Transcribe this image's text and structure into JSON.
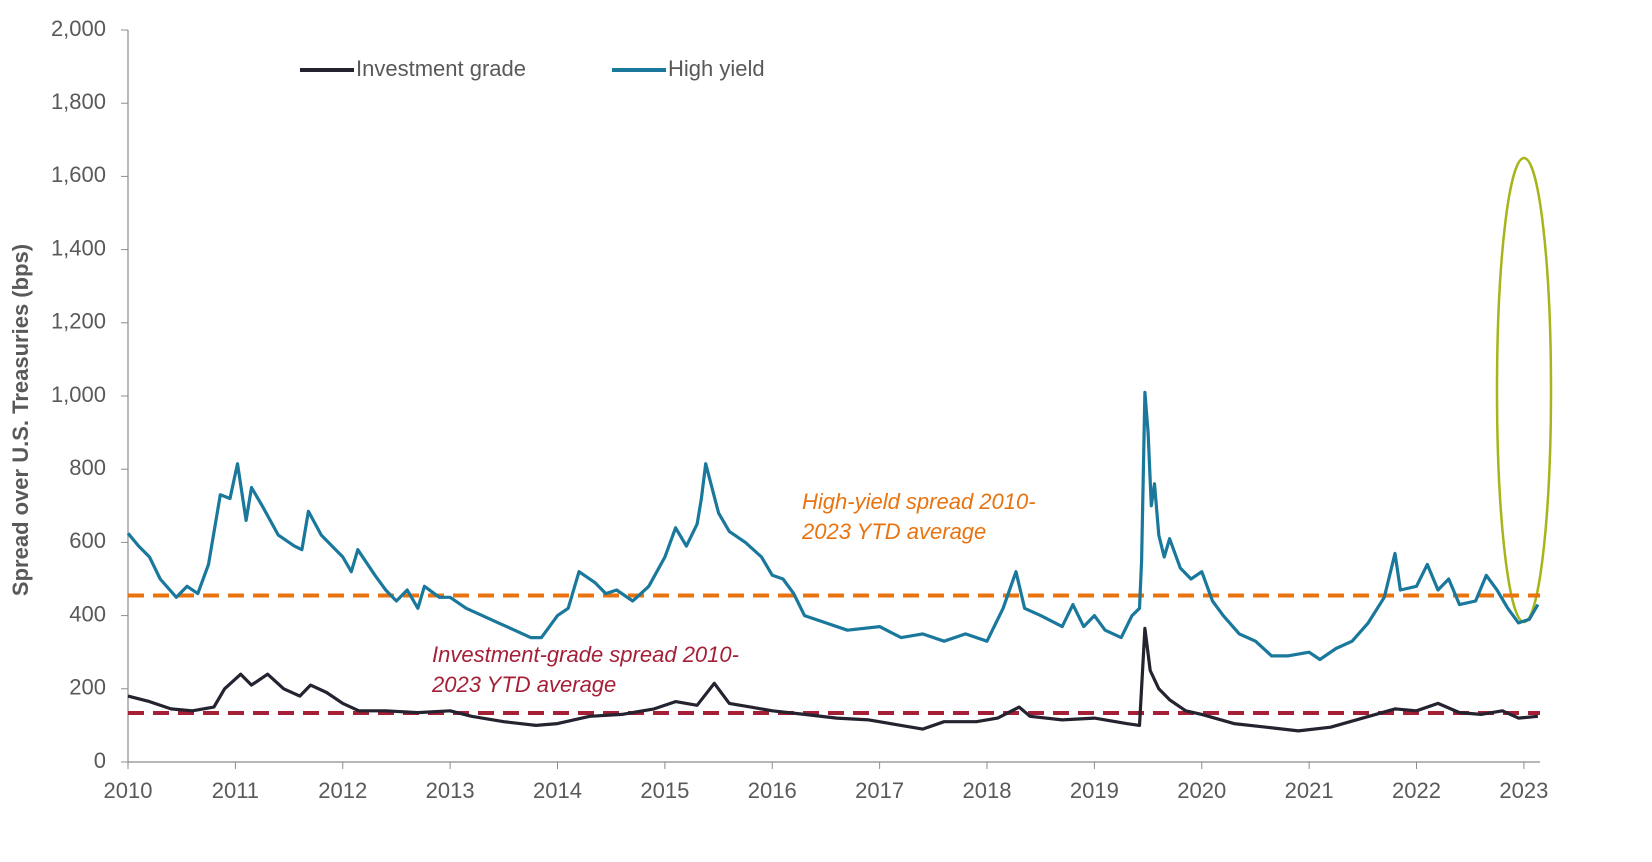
{
  "chart_data": {
    "type": "line",
    "y_label": "Spread over U.S. Treasuries (bps)",
    "xlim": [
      2010,
      2023.15
    ],
    "xticks": [
      2010,
      2011,
      2012,
      2013,
      2014,
      2015,
      2016,
      2017,
      2018,
      2019,
      2020,
      2021,
      2022,
      2023
    ],
    "ylim": [
      0,
      2000
    ],
    "yticks": [
      0,
      200,
      400,
      600,
      800,
      {
        "value": 1000,
        "label": "1,000"
      },
      {
        "value": 1200,
        "label": "1,200"
      },
      {
        "value": 1400,
        "label": "1,400"
      },
      {
        "value": 1600,
        "label": "1,600"
      },
      {
        "value": 1800,
        "label": "1,800"
      },
      {
        "value": 2000,
        "label": "2,000"
      }
    ],
    "grid": false,
    "legend": "top",
    "series": [
      {
        "name": "Investment grade",
        "color": "#24232f",
        "x": [
          2010.0,
          2010.2,
          2010.4,
          2010.6,
          2010.8,
          2010.9,
          2011.05,
          2011.15,
          2011.3,
          2011.45,
          2011.6,
          2011.7,
          2011.85,
          2012.0,
          2012.15,
          2012.4,
          2012.7,
          2013.0,
          2013.2,
          2013.5,
          2013.8,
          2014.0,
          2014.3,
          2014.6,
          2014.9,
          2015.1,
          2015.3,
          2015.46,
          2015.6,
          2015.8,
          2016.0,
          2016.3,
          2016.6,
          2016.9,
          2017.2,
          2017.4,
          2017.6,
          2017.9,
          2018.1,
          2018.3,
          2018.4,
          2018.7,
          2019.0,
          2019.3,
          2019.42,
          2019.47,
          2019.52,
          2019.6,
          2019.7,
          2019.85,
          2020.0,
          2020.3,
          2020.6,
          2020.9,
          2021.2,
          2021.5,
          2021.8,
          2022.0,
          2022.2,
          2022.4,
          2022.6,
          2022.8,
          2022.95,
          2023.13
        ],
        "values": [
          180,
          165,
          145,
          140,
          150,
          200,
          240,
          210,
          240,
          200,
          180,
          210,
          190,
          160,
          140,
          140,
          135,
          140,
          125,
          110,
          100,
          105,
          125,
          130,
          145,
          165,
          155,
          215,
          160,
          150,
          140,
          130,
          120,
          115,
          100,
          90,
          110,
          110,
          120,
          150,
          125,
          115,
          120,
          105,
          100,
          365,
          250,
          200,
          170,
          140,
          130,
          105,
          95,
          85,
          95,
          120,
          145,
          140,
          160,
          135,
          130,
          140,
          120,
          125
        ]
      },
      {
        "name": "High yield",
        "color": "#19789b",
        "x": [
          2010.0,
          2010.1,
          2010.2,
          2010.3,
          2010.45,
          2010.55,
          2010.65,
          2010.75,
          2010.86,
          2010.95,
          2011.02,
          2011.1,
          2011.15,
          2011.25,
          2011.4,
          2011.55,
          2011.62,
          2011.68,
          2011.8,
          2012.0,
          2012.08,
          2012.14,
          2012.3,
          2012.4,
          2012.5,
          2012.6,
          2012.7,
          2012.76,
          2012.9,
          2013.0,
          2013.15,
          2013.3,
          2013.45,
          2013.6,
          2013.75,
          2013.85,
          2014.0,
          2014.1,
          2014.2,
          2014.35,
          2014.45,
          2014.55,
          2014.7,
          2014.85,
          2015.0,
          2015.1,
          2015.2,
          2015.3,
          2015.34,
          2015.38,
          2015.5,
          2015.6,
          2015.75,
          2015.9,
          2016.0,
          2016.1,
          2016.2,
          2016.3,
          2016.5,
          2016.7,
          2017.0,
          2017.2,
          2017.4,
          2017.6,
          2017.8,
          2018.0,
          2018.15,
          2018.27,
          2018.35,
          2018.5,
          2018.7,
          2018.8,
          2018.9,
          2019.0,
          2019.1,
          2019.25,
          2019.35,
          2019.42,
          2019.44,
          2019.47,
          2019.5,
          2019.53,
          2019.56,
          2019.6,
          2019.65,
          2019.7,
          2019.8,
          2019.9,
          2020.0,
          2020.1,
          2020.2,
          2020.35,
          2020.5,
          2020.65,
          2020.8,
          2021.0,
          2021.1,
          2021.25,
          2021.4,
          2021.55,
          2021.7,
          2021.8,
          2021.85,
          2022.0,
          2022.1,
          2022.2,
          2022.3,
          2022.4,
          2022.55,
          2022.65,
          2022.75,
          2022.85,
          2022.95,
          2023.05,
          2023.13
        ],
        "values": [
          625,
          590,
          560,
          500,
          450,
          480,
          460,
          540,
          730,
          720,
          815,
          660,
          750,
          700,
          620,
          590,
          580,
          685,
          620,
          560,
          520,
          580,
          510,
          470,
          440,
          470,
          420,
          480,
          450,
          450,
          420,
          400,
          380,
          360,
          340,
          340,
          400,
          420,
          520,
          490,
          460,
          470,
          440,
          480,
          560,
          640,
          590,
          650,
          720,
          815,
          680,
          630,
          600,
          560,
          510,
          500,
          460,
          400,
          380,
          360,
          370,
          340,
          350,
          330,
          350,
          330,
          420,
          520,
          420,
          400,
          370,
          430,
          370,
          400,
          360,
          340,
          400,
          420,
          550,
          1010,
          900,
          700,
          760,
          620,
          560,
          610,
          530,
          500,
          520,
          440,
          400,
          350,
          330,
          290,
          290,
          300,
          280,
          310,
          330,
          380,
          450,
          570,
          470,
          480,
          540,
          470,
          500,
          430,
          440,
          510,
          470,
          420,
          380,
          390,
          430
        ]
      }
    ],
    "reference_lines": [
      {
        "value": 455,
        "color": "#e8730f",
        "label": [
          "High-yield spread 2010-",
          "2023 YTD average"
        ]
      },
      {
        "value": 134,
        "color": "#a51f37",
        "label": [
          "Investment-grade spread 2010-",
          "2023 YTD average"
        ]
      }
    ]
  }
}
